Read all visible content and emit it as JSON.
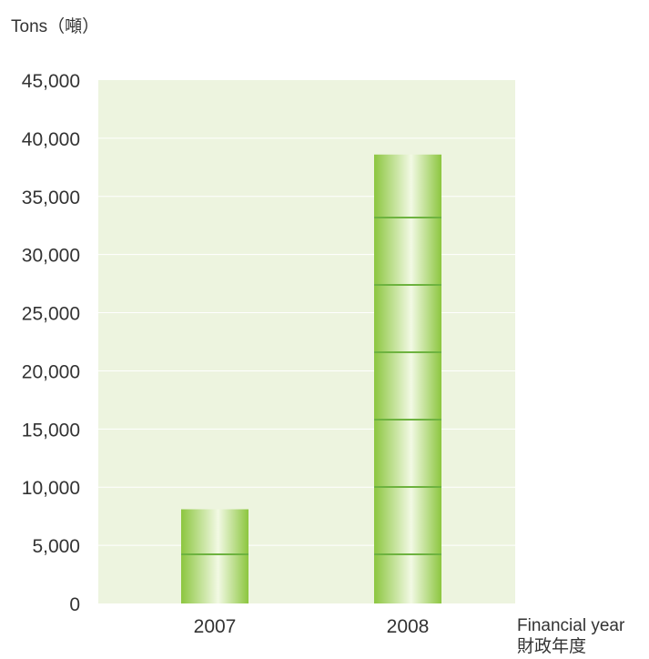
{
  "chart_data": {
    "type": "bar",
    "categories": [
      "2007",
      "2008"
    ],
    "values": [
      8100,
      38600
    ],
    "ylabel": "Tons（噸）",
    "xlabel_en": "Financial year",
    "xlabel_zh": "財政年度",
    "ylim": [
      0,
      45000
    ],
    "yticks": [
      "0",
      "5,000",
      "10,000",
      "15,000",
      "20,000",
      "25,000",
      "30,000",
      "35,000",
      "40,000",
      "45,000"
    ],
    "grid": true,
    "colors": {
      "plot_bg": "#edf4df",
      "bar": "#8cc63f",
      "bar_light": "#f2f9e4",
      "segment_line": "#6db33f",
      "grid": "#ffffff"
    }
  }
}
